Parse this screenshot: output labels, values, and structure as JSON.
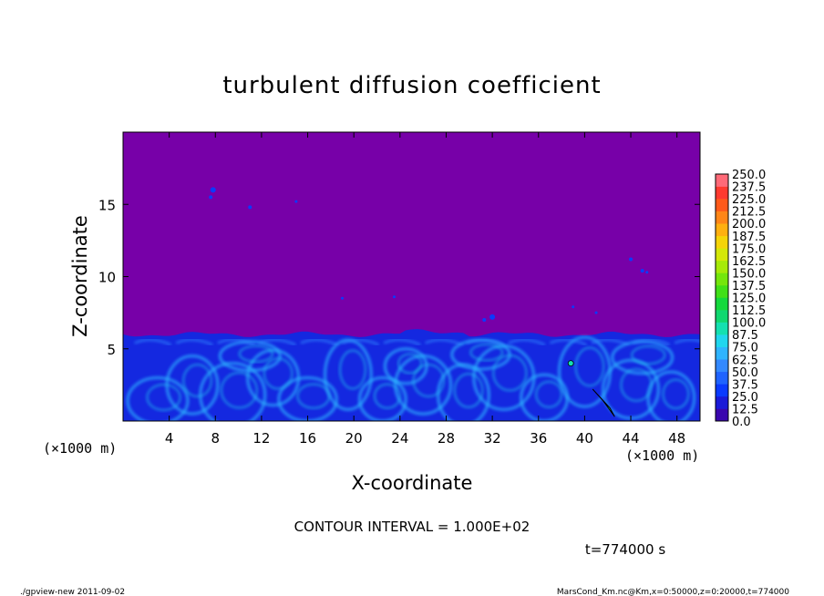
{
  "chart_data": {
    "type": "heatmap",
    "title": "turbulent diffusion coefficient",
    "xlabel": "X-coordinate",
    "ylabel": "Z-coordinate",
    "x_unit": "(×1000 m)",
    "y_unit": "(×1000 m)",
    "xlim": [
      0,
      50
    ],
    "ylim": [
      0,
      20
    ],
    "x_ticks": [
      4,
      8,
      12,
      16,
      20,
      24,
      28,
      32,
      36,
      40,
      44,
      48
    ],
    "y_ticks": [
      5,
      10,
      15
    ],
    "grid": false,
    "colorbar": {
      "levels": [
        "0.0",
        "12.5",
        "25.0",
        "37.5",
        "50.0",
        "62.5",
        "75.0",
        "87.5",
        "100.0",
        "112.5",
        "125.0",
        "137.5",
        "150.0",
        "162.5",
        "175.0",
        "187.5",
        "200.0",
        "212.5",
        "225.0",
        "237.5",
        "250.0"
      ],
      "colors": [
        "#3a06ae",
        "#1a1ad8",
        "#0a3aff",
        "#1f63ff",
        "#3389ff",
        "#2fb4ff",
        "#20d6ee",
        "#14e0b0",
        "#10d870",
        "#14d93c",
        "#40e018",
        "#74e60c",
        "#a6ea08",
        "#d4e808",
        "#f5d408",
        "#ffb010",
        "#ff8618",
        "#ff5a1a",
        "#ff3a30",
        "#ff6a78"
      ]
    },
    "plot_background_color": "#7700a8",
    "boundary_layer_top_km": 6.0,
    "annotations": {
      "contour_interval": "CONTOUR INTERVAL = 1.000E+02",
      "time": "t=774000 s"
    }
  },
  "footer": {
    "left": "./gpview-new  2011-09-02",
    "right": "MarsCond_Km.nc@Km,x=0:50000,z=0:20000,t=774000"
  }
}
